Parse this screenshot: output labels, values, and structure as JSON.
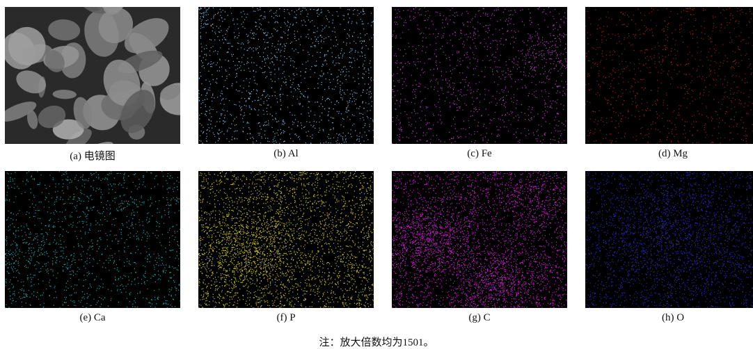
{
  "panels": [
    {
      "caption": "(a) 电镜图"
    },
    {
      "caption": "(b) Al"
    },
    {
      "caption": "(c) Fe"
    },
    {
      "caption": "(d) Mg"
    },
    {
      "caption": "(e) Ca"
    },
    {
      "caption": "(f) P"
    },
    {
      "caption": "(g) C"
    },
    {
      "caption": "(h) O"
    }
  ],
  "note": "注：放大倍数均为1501。"
}
